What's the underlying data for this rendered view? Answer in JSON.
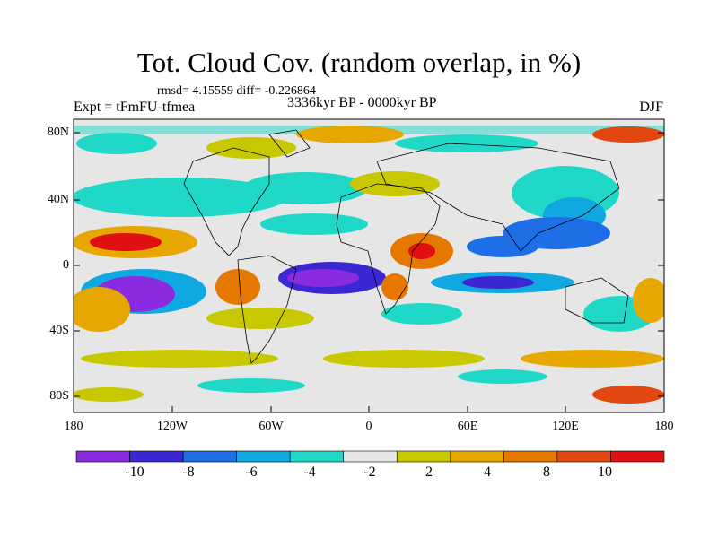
{
  "header": {
    "title": "Tot. Cloud Cov. (random overlap, in %)",
    "stats": "rmsd= 4.15559 diff= -0.226864",
    "experiment": "Expt = tFmFU-tfmea",
    "period": "3336kyr BP - 0000kyr BP",
    "season": "DJF"
  },
  "axes": {
    "y_ticks": [
      "80N",
      "40N",
      "0",
      "40S",
      "80S"
    ],
    "x_ticks": [
      "180",
      "120W",
      "60W",
      "0",
      "60E",
      "120E",
      "180"
    ]
  },
  "colorbar": {
    "colors": [
      "#8a2be2",
      "#3c28d2",
      "#1e6ee6",
      "#10a8e0",
      "#20d8c8",
      "#e6e6e6",
      "#c8c800",
      "#e6a800",
      "#e67800",
      "#e04810",
      "#e01010"
    ],
    "labels": [
      "-10",
      "-8",
      "-6",
      "-4",
      "-2",
      "2",
      "4",
      "8",
      "10"
    ]
  }
}
